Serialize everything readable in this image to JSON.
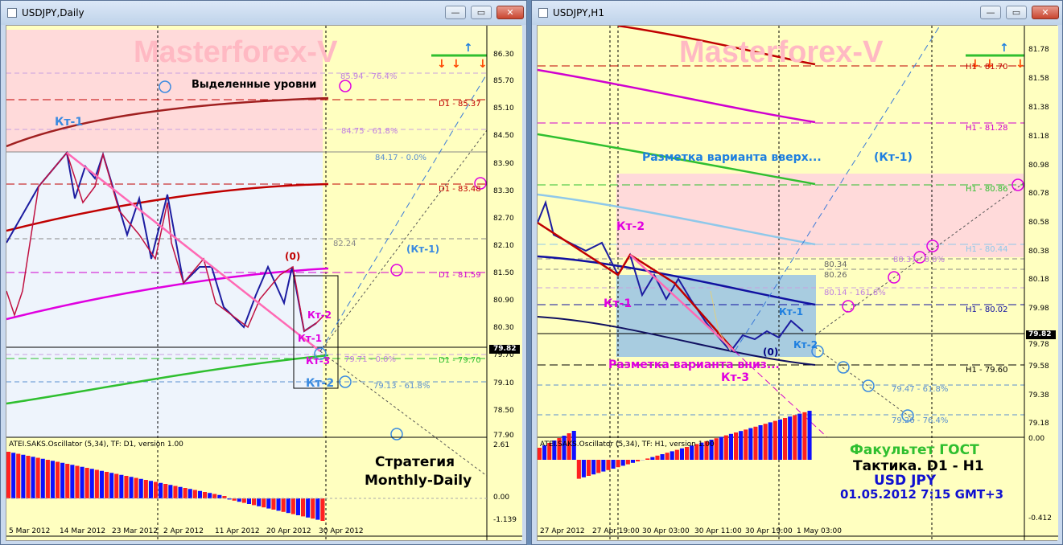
{
  "left_window": {
    "title": "USDJPY,Daily",
    "watermark": "Masterforex-V",
    "price_labels": [
      "86.30",
      "85.70",
      "85.10",
      "84.50",
      "83.90",
      "83.30",
      "82.70",
      "82.10",
      "81.50",
      "80.90",
      "80.30",
      "79.70",
      "79.10",
      "78.50",
      "77.90"
    ],
    "current_price": "79.82",
    "levels": {
      "l_8594": "85.94 - 76.4%",
      "d1_8537": "D1 - 85.37",
      "l_8475": "84.75 - 61.8%",
      "l_8417": "84.17 - 0.0%",
      "d1_8348": "D1 - 83.48",
      "l_8224": "82.24",
      "d1_8159": "D1 - 81.59",
      "l_7971": "79.71 - 0.0%",
      "d1_7970": "D1 - 79.70",
      "l_7913": "79.13 - 61.8%"
    },
    "annotations": {
      "highlighted_levels": "Выделенные уровни",
      "kt1_top": "Кт-1",
      "zero": "(0)",
      "kt2": "Кт-2",
      "kt1": "Кт-1",
      "kt3": "Кт-3",
      "kt2_blue": "Кт-2",
      "kt1_paren": "(Кт-1)"
    },
    "oscillator": {
      "label": "ATEI.SAKS.Oscillator (5,34), TF: D1, version 1.00",
      "scale": [
        "2.61",
        "0.00",
        "-1.139"
      ],
      "strategy_line1": "Стратегия",
      "strategy_line2": "Monthly-Daily"
    },
    "dates": [
      "5 Mar 2012",
      "14 Mar 2012",
      "23 Mar 2012",
      "2 Apr 2012",
      "11 Apr 2012",
      "20 Apr 2012",
      "30 Apr 2012"
    ]
  },
  "right_window": {
    "title": "USDJPY,H1",
    "watermark": "Masterforex-V",
    "price_labels": [
      "81.78",
      "81.58",
      "81.38",
      "81.18",
      "80.98",
      "80.78",
      "80.58",
      "80.38",
      "80.18",
      "79.98",
      "79.78",
      "79.58",
      "79.38",
      "79.18",
      "0.00",
      "-0.412"
    ],
    "current_price": "79.82",
    "levels": {
      "h1_8170": "H1 - 81.70",
      "h1_8128": "H1 - 81.28",
      "h1_8086": "H1 - 80.86",
      "h1_8044": "H1 - 80.44",
      "l_8034": "80.34",
      "l_8037": "80.37 - 0.0%",
      "l_8026": "80.26",
      "l_8014": "80.14 - 161.8%",
      "h1_8002": "H1 - 80.02",
      "h1_7960": "H1 - 79.60",
      "l_7947": "79.47 - 61.8%",
      "l_7926": "79.26 - 76.4%"
    },
    "annotations": {
      "up_variant": "Разметка варианта вверх...",
      "kt1_paren": "(Кт-1)",
      "kt2": "Кт-2",
      "kt1_left": "Кт-1",
      "kt1_right": "Кт-1",
      "zero": "(0)",
      "kt2_blue": "Кт-2",
      "down_variant": "Разметка варианта вниз...",
      "kt3": "Кт-3"
    },
    "oscillator": {
      "label": "ATEI.SAKS.Oscillator (5,34), TF: H1, version 1.00",
      "faculty": "Факультет ГОСТ",
      "tactics": "Тактика. D1 - H1",
      "pair": "USD JPY",
      "datetime": "01.05.2012 7:15 GMT+3"
    },
    "dates": [
      "27 Apr 2012",
      "27 Apr 19:00",
      "30 Apr 03:00",
      "30 Apr 11:00",
      "30 Apr 19:00",
      "1 May 03:00"
    ]
  },
  "colors": {
    "chart_bg": "#ffffc0",
    "pink_zone": "#ffdada",
    "blue_zone": "#eaf2fb",
    "blue_box": "#a8cce0",
    "watermark": "#ffb9c3",
    "magenta": "#e000e0",
    "dark_red": "#b00000",
    "green": "#2fbf2f",
    "navy": "#1010a0"
  }
}
